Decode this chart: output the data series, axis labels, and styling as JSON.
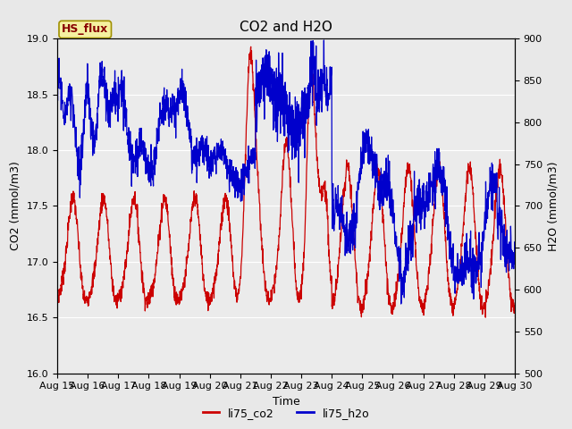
{
  "title": "CO2 and H2O",
  "xlabel": "Time",
  "ylabel_left": "CO2 (mmol/m3)",
  "ylabel_right": "H2O (mmol/m3)",
  "legend_label": "HS_flux",
  "series_labels": [
    "li75_co2",
    "li75_h2o"
  ],
  "series_colors": [
    "#cc0000",
    "#0000cc"
  ],
  "co2_ylim": [
    16.0,
    19.0
  ],
  "h2o_ylim": [
    500,
    900
  ],
  "x_tick_labels": [
    "Aug 15",
    "Aug 16",
    "Aug 17",
    "Aug 18",
    "Aug 19",
    "Aug 20",
    "Aug 21",
    "Aug 22",
    "Aug 23",
    "Aug 24",
    "Aug 25",
    "Aug 26",
    "Aug 27",
    "Aug 28",
    "Aug 29",
    "Aug 30"
  ],
  "fig_bg_color": "#e8e8e8",
  "plot_bg_color": "#ebebeb",
  "legend_box_facecolor": "#f5f0a0",
  "legend_box_edgecolor": "#a09000",
  "title_fontsize": 11,
  "label_fontsize": 9,
  "tick_fontsize": 8
}
